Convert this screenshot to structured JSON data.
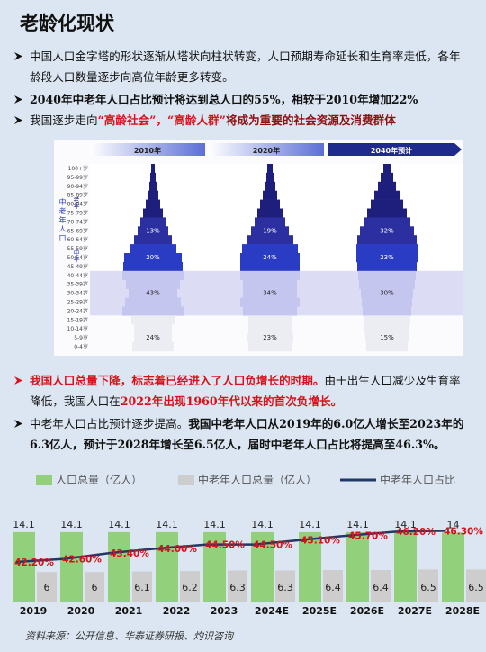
{
  "header": {
    "title": "老龄化现状"
  },
  "bullets_top": [
    [
      "中国人口金字塔的形状逐渐从塔状向柱状转变，人口预期寿命延长和生育率走低，各年龄段人口数量逐步向高位年龄更多转变。"
    ],
    [
      "2040年中老年人口占比预计将达到总人口的55%，相较于2010年增加22%"
    ],
    [
      "我国逐步走向",
      "“高龄社会”，“高龄人群”",
      "将成为重要的社会资源及消费群体"
    ]
  ],
  "pyramid": {
    "headers": [
      "2010年",
      "2020年",
      "2040年预计"
    ],
    "side_label": "中老年人口",
    "old_label": "老年",
    "middle_label": "中年",
    "age_groups": [
      "100+岁",
      "95-99岁",
      "90-94岁",
      "85-89岁",
      "80-84岁",
      "75-79岁",
      "70-74岁",
      "65-69岁",
      "60-64岁",
      "55-59岁",
      "50-54岁",
      "45-49岁",
      "40-44岁",
      "35-39岁",
      "30-34岁",
      "25-29岁",
      "20-24岁",
      "15-19岁",
      "10-14岁",
      "5-9岁",
      "0-4岁"
    ],
    "shares": [
      [
        "13%",
        "20%",
        "43%",
        "24%"
      ],
      [
        "19%",
        "24%",
        "34%",
        "23%"
      ],
      [
        "32%",
        "23%",
        "30%",
        "15%"
      ]
    ]
  },
  "bullets_bottom": [
    [
      "我国人口总量下降，标志着已经进入了人口负增长的时期。",
      "由于出生人口减少及生育率降低，我国人口在",
      "2022年出现1960年代以来的首次负增长。"
    ],
    [
      "中老年人口占比预计逐步提高。",
      "我国中老年人口从2019年的6.0亿人增长至2023年的6.3亿人，预计于2028年增长至6.5亿人，届时中老年人口占比将提高至46.3%。"
    ]
  ],
  "chart_data": {
    "type": "bar",
    "categories": [
      "2019",
      "2020",
      "2021",
      "2022",
      "2023",
      "2024E",
      "2025E",
      "2026E",
      "2027E",
      "2028E"
    ],
    "series": [
      {
        "name": "人口总量（亿人）",
        "color": "#92d07c",
        "values": [
          14.1,
          14.1,
          14.1,
          14.1,
          14.1,
          14.1,
          14.1,
          14.1,
          14.1,
          14
        ]
      },
      {
        "name": "中老年人口总量（亿人）",
        "color": "#cdcdcd",
        "values": [
          6,
          6,
          6.1,
          6.2,
          6.3,
          6.3,
          6.4,
          6.4,
          6.5,
          6.5
        ]
      },
      {
        "name": "中老年人口占比",
        "color": "#1f3864",
        "type": "line",
        "axis": "y2",
        "label_color": "#d9111a",
        "values": [
          42.2,
          42.6,
          43.4,
          44.0,
          44.5,
          44.5,
          45.1,
          45.7,
          46.2,
          46.3
        ],
        "value_labels": [
          "42.20%",
          "42.60%",
          "43.40%",
          "44.00%",
          "44.50%",
          "44.50%",
          "45.10%",
          "45.70%",
          "46.20%",
          "46.30%"
        ]
      }
    ],
    "ylim": [
      0,
      17
    ],
    "y2lim": [
      37,
      48
    ]
  },
  "source": "资料来源：公开信息、华泰证券研报、灼识咨询"
}
